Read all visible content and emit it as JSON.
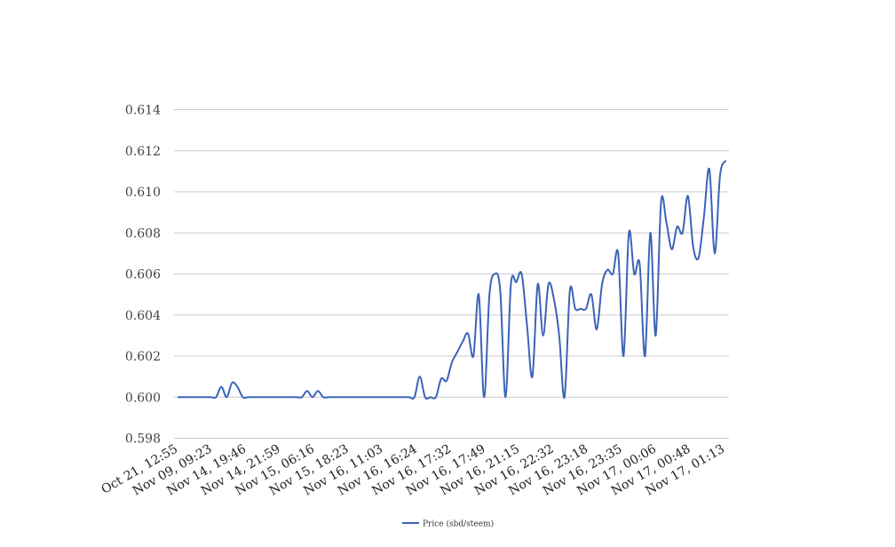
{
  "chart_data": {
    "type": "line",
    "title": "",
    "xlabel": "",
    "ylabel": "",
    "ylim": [
      0.598,
      0.614
    ],
    "yticks": [
      "0.598",
      "0.600",
      "0.602",
      "0.604",
      "0.606",
      "0.608",
      "0.610",
      "0.612",
      "0.614"
    ],
    "grid": true,
    "legend_position": "bottom",
    "series_color": "#3b63b8",
    "xtick_labels": [
      "Oct 21, 12:55",
      "Nov 09, 09:23",
      "Nov 14, 19:46",
      "Nov 14, 21:59",
      "Nov 15, 06:16",
      "Nov 15, 18:23",
      "Nov 16, 11:03",
      "Nov 16, 16:24",
      "Nov 16, 17:32",
      "Nov 16, 17:49",
      "Nov 16, 21:15",
      "Nov 16, 22:32",
      "Nov 16, 23:18",
      "Nov 16, 23:35",
      "Nov 17, 00:06",
      "Nov 17, 00:48",
      "Nov 17, 01:13"
    ],
    "series": [
      {
        "name": "Price (sbd/steem)",
        "values": [
          0.6,
          0.6,
          0.6,
          0.6,
          0.6,
          0.6,
          0.6,
          0.6,
          0.6005,
          0.6,
          0.6007,
          0.6005,
          0.6,
          0.6,
          0.6,
          0.6,
          0.6,
          0.6,
          0.6,
          0.6,
          0.6,
          0.6,
          0.6,
          0.6,
          0.6003,
          0.6,
          0.6003,
          0.6,
          0.6,
          0.6,
          0.6,
          0.6,
          0.6,
          0.6,
          0.6,
          0.6,
          0.6,
          0.6,
          0.6,
          0.6,
          0.6,
          0.6,
          0.6,
          0.6,
          0.6,
          0.601,
          0.6,
          0.6,
          0.6,
          0.6009,
          0.6008,
          0.6017,
          0.6022,
          0.6027,
          0.6031,
          0.602,
          0.605,
          0.6,
          0.605,
          0.606,
          0.6052,
          0.6,
          0.6055,
          0.6056,
          0.606,
          0.6035,
          0.601,
          0.6055,
          0.603,
          0.6055,
          0.6048,
          0.603,
          0.6,
          0.6052,
          0.6043,
          0.6043,
          0.6043,
          0.605,
          0.6033,
          0.6055,
          0.6062,
          0.606,
          0.607,
          0.602,
          0.608,
          0.606,
          0.6065,
          0.602,
          0.608,
          0.603,
          0.6095,
          0.6085,
          0.6072,
          0.6083,
          0.608,
          0.6098,
          0.6073,
          0.6068,
          0.6088,
          0.6111,
          0.607,
          0.6108,
          0.6115
        ]
      }
    ]
  }
}
